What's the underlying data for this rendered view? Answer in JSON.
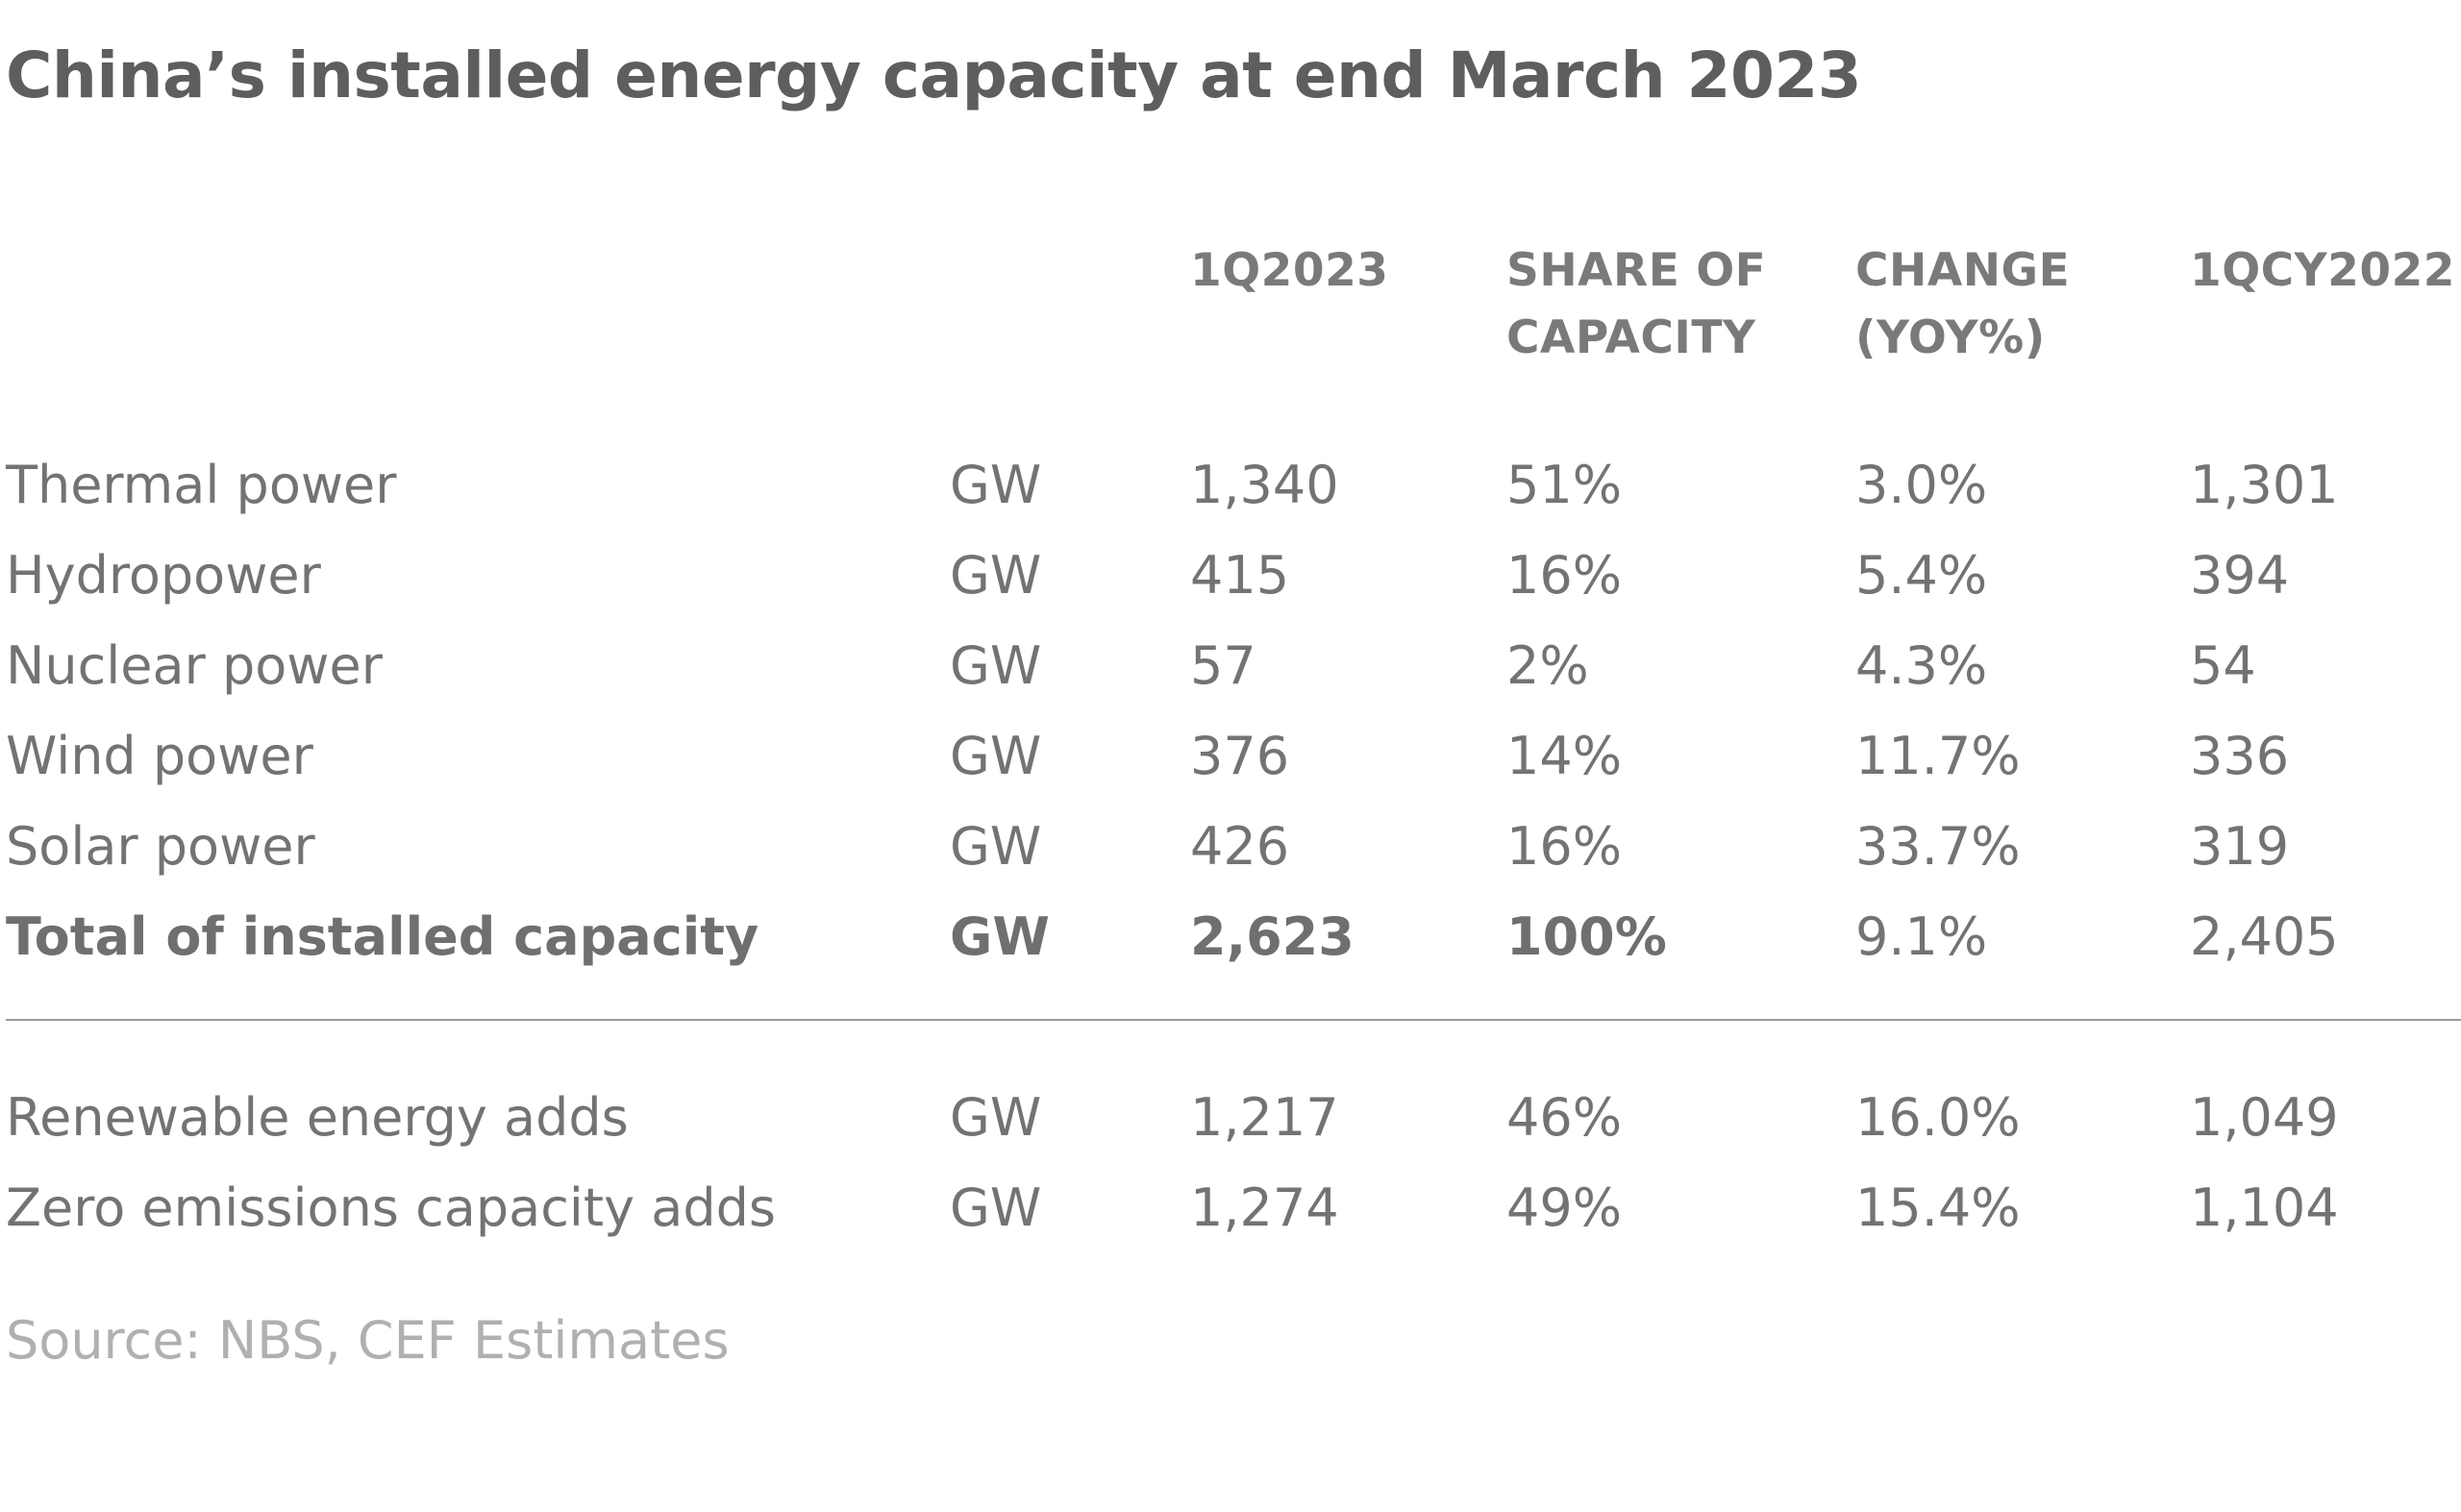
{
  "chart_data": {
    "type": "table",
    "title": "China’s installed energy capacity at end March 2023",
    "columns": [
      "",
      "",
      "1Q2023",
      "SHARE OF\nCAPACITY",
      "CHANGE\n(YOY%)",
      "1QCY2022"
    ],
    "rows": [
      {
        "label": "Thermal power",
        "unit": "GW",
        "q2023": "1,340",
        "share": "51%",
        "change": "3.0%",
        "q2022": "1,301"
      },
      {
        "label": "Hydropower",
        "unit": "GW",
        "q2023": "415",
        "share": "16%",
        "change": "5.4%",
        "q2022": "394"
      },
      {
        "label": "Nuclear power",
        "unit": "GW",
        "q2023": "57",
        "share": "2%",
        "change": "4.3%",
        "q2022": "54"
      },
      {
        "label": "Wind power",
        "unit": "GW",
        "q2023": "376",
        "share": "14%",
        "change": "11.7%",
        "q2022": "336"
      },
      {
        "label": "Solar power",
        "unit": "GW",
        "q2023": "426",
        "share": "16%",
        "change": "33.7%",
        "q2022": "319"
      },
      {
        "label": "Total of installed capacity",
        "unit": "GW",
        "q2023": "2,623",
        "share": "100%",
        "change": "9.1%",
        "q2022": "2,405"
      },
      {
        "label": "Renewable energy adds",
        "unit": "GW",
        "q2023": "1,217",
        "share": "46%",
        "change": "16.0%",
        "q2022": "1,049"
      },
      {
        "label": "Zero emissions capacity adds",
        "unit": "GW",
        "q2023": "1,274",
        "share": "49%",
        "change": "15.4%",
        "q2022": "1,104"
      }
    ],
    "source": "Source: NBS, CEF Estimates"
  }
}
